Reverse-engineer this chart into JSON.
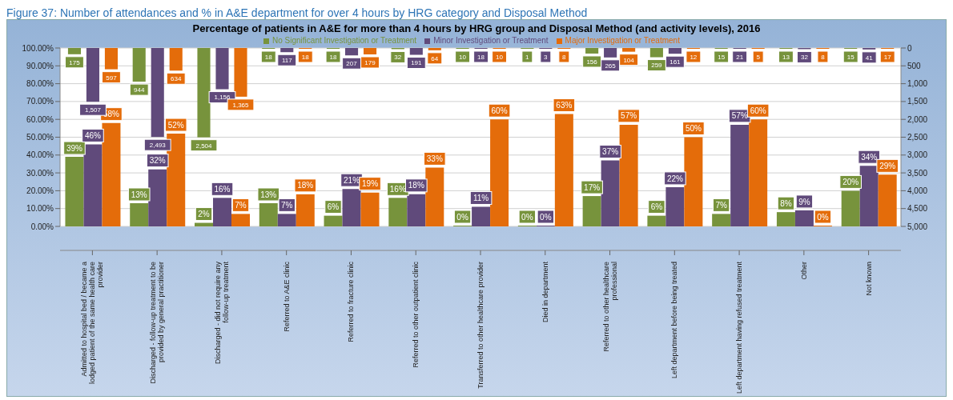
{
  "chart_data": {
    "type": "bar",
    "title": "Percentage of patients in A&E for more than 4 hours by HRG group and Disposal Method (and activity levels), 2016",
    "annotations": [
      "Figure 37: Number of attendances and % in A&E department for over 4 hours by HRG category and Disposal Method"
    ],
    "categories": [
      "Admitted to hospital bed / became a lodged patient of the same health care provider",
      "Discharged - follow-up treatment to be provided by general practitioner",
      "Discharged - did not require any follow-up treatment",
      "Referred to A&E clinic",
      "Referred to fracture clinic",
      "Referred to other outpatient clinic",
      "Transferred to other healthcare provider",
      "Died in department",
      "Referred to other healthcare professional",
      "Left department before being treated",
      "Left department having refused treatment",
      "Other",
      "Not known"
    ],
    "series": [
      {
        "name": "No Significant Investigation or Treatment",
        "color": "#77933c",
        "values": [
          39,
          13,
          2,
          13,
          6,
          16,
          0,
          0,
          17,
          6,
          7,
          8,
          20
        ],
        "value_labels": [
          "39%",
          "13%",
          "2%",
          "13%",
          "6%",
          "16%",
          "0%",
          "0%",
          "17%",
          "6%",
          "7%",
          "8%",
          "20%"
        ]
      },
      {
        "name": "Minor Investigation or Treatment",
        "color": "#604a7b",
        "values": [
          46,
          32,
          16,
          7,
          21,
          18,
          11,
          0,
          37,
          22,
          57,
          9,
          34
        ],
        "value_labels": [
          "46%",
          "32%",
          "16%",
          "7%",
          "21%",
          "18%",
          "11%",
          "0%",
          "37%",
          "22%",
          "57%",
          "9%",
          "34%"
        ]
      },
      {
        "name": "Major Investigation or Treatment",
        "color": "#e46c0a",
        "values": [
          58,
          52,
          7,
          18,
          19,
          33,
          60,
          63,
          57,
          50,
          60,
          0,
          29
        ],
        "value_labels": [
          "58%",
          "52%",
          "7%",
          "18%",
          "19%",
          "33%",
          "60%",
          "63%",
          "57%",
          "50%",
          "60%",
          "0%",
          "29%"
        ]
      },
      {
        "color": "#77933c",
        "axis": "y2",
        "values": [
          175,
          944,
          2504,
          18,
          18,
          32,
          10,
          1,
          156,
          259,
          15,
          13,
          15
        ],
        "value_labels": [
          "175",
          "944",
          "2,504",
          "18",
          "18",
          "32",
          "10",
          "1",
          "156",
          "259",
          "15",
          "13",
          "15"
        ]
      },
      {
        "color": "#604a7b",
        "axis": "y2",
        "values": [
          1507,
          2493,
          1156,
          117,
          207,
          191,
          18,
          3,
          265,
          161,
          21,
          32,
          41
        ],
        "value_labels": [
          "1,507",
          "2,493",
          "1,156",
          "117",
          "207",
          "191",
          "18",
          "3",
          "265",
          "161",
          "21",
          "32",
          "41"
        ]
      },
      {
        "color": "#e46c0a",
        "axis": "y2",
        "values": [
          597,
          634,
          1365,
          18,
          179,
          64,
          10,
          8,
          104,
          12,
          5,
          8,
          17
        ],
        "value_labels": [
          "597",
          "634",
          "1,365",
          "18",
          "179",
          "64",
          "10",
          "8",
          "104",
          "12",
          "5",
          "8",
          "17"
        ]
      }
    ],
    "ylim": [
      0,
      100
    ],
    "yticks": [
      {
        "value": 0,
        "label": "0.00%"
      },
      {
        "value": 10,
        "label": "10.00%"
      },
      {
        "value": 20,
        "label": "20.00%"
      },
      {
        "value": 30,
        "label": "30.00%"
      },
      {
        "value": 40,
        "label": "40.00%"
      },
      {
        "value": 50,
        "label": "50.00%"
      },
      {
        "value": 60,
        "label": "60.00%"
      },
      {
        "value": 70,
        "label": "70.00%"
      },
      {
        "value": 80,
        "label": "80.00%"
      },
      {
        "value": 90,
        "label": "90.00%"
      },
      {
        "value": 100,
        "label": "100.00%"
      }
    ],
    "y2lim": [
      5000,
      0
    ],
    "y2ticks": [
      0,
      500,
      {
        "value": 1000,
        "label": "1,000"
      },
      {
        "value": 1500,
        "label": "1,500"
      },
      {
        "value": 2000,
        "label": "2,000"
      },
      {
        "value": 2500,
        "label": "2,500"
      },
      {
        "value": 3000,
        "label": "3,000"
      },
      {
        "value": 3500,
        "label": "3,500"
      },
      {
        "value": 4000,
        "label": "4,000"
      },
      {
        "value": 4500,
        "label": "4,500"
      },
      {
        "value": 5000,
        "label": "5,000"
      }
    ],
    "grid": "y",
    "legend": "top"
  }
}
